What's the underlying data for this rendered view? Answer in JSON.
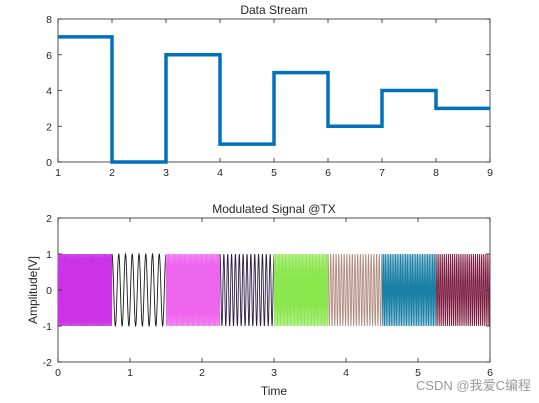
{
  "watermark": "CSDN @我爱C编程",
  "chart_data": [
    {
      "type": "line",
      "title": "Data Stream",
      "xlabel": "",
      "ylabel": "",
      "xlim": [
        1,
        9
      ],
      "ylim": [
        0,
        8
      ],
      "xticks": [
        "1",
        "2",
        "3",
        "4",
        "5",
        "6",
        "7",
        "8",
        "9"
      ],
      "yticks": [
        "0",
        "2",
        "4",
        "6",
        "8"
      ],
      "step": true,
      "color": "#0072BD",
      "series": [
        {
          "x": [
            1,
            2,
            3,
            4,
            5,
            6,
            7,
            8,
            9
          ],
          "y": [
            7,
            0,
            6,
            1,
            5,
            2,
            4,
            3,
            3
          ]
        }
      ]
    },
    {
      "type": "line",
      "title": "Modulated Signal @TX",
      "xlabel": "Time",
      "ylabel": "Amplitude[V]",
      "xlim": [
        0,
        6
      ],
      "ylim": [
        -2,
        2
      ],
      "xticks": [
        "0",
        "1",
        "2",
        "3",
        "4",
        "5",
        "6"
      ],
      "yticks": [
        "-2",
        "-1",
        "0",
        "1",
        "2"
      ],
      "amplitude": 1,
      "segments": [
        {
          "t0": 0.0,
          "t1": 0.75,
          "symbol": 7,
          "color": "#CC33E6"
        },
        {
          "t0": 0.75,
          "t1": 1.5,
          "symbol": 0,
          "color": "#1A1A1A"
        },
        {
          "t0": 1.5,
          "t1": 2.25,
          "symbol": 6,
          "color": "#EE66EE"
        },
        {
          "t0": 2.25,
          "t1": 3.0,
          "symbol": 1,
          "color": "#2B1F47"
        },
        {
          "t0": 3.0,
          "t1": 3.75,
          "symbol": 5,
          "color": "#8CE64D"
        },
        {
          "t0": 3.75,
          "t1": 4.5,
          "symbol": 2,
          "color": "#B08C80"
        },
        {
          "t0": 4.5,
          "t1": 5.25,
          "symbol": 4,
          "color": "#1A80A6"
        },
        {
          "t0": 5.25,
          "t1": 6.0,
          "symbol": 3,
          "color": "#7A1A3D"
        }
      ]
    }
  ]
}
